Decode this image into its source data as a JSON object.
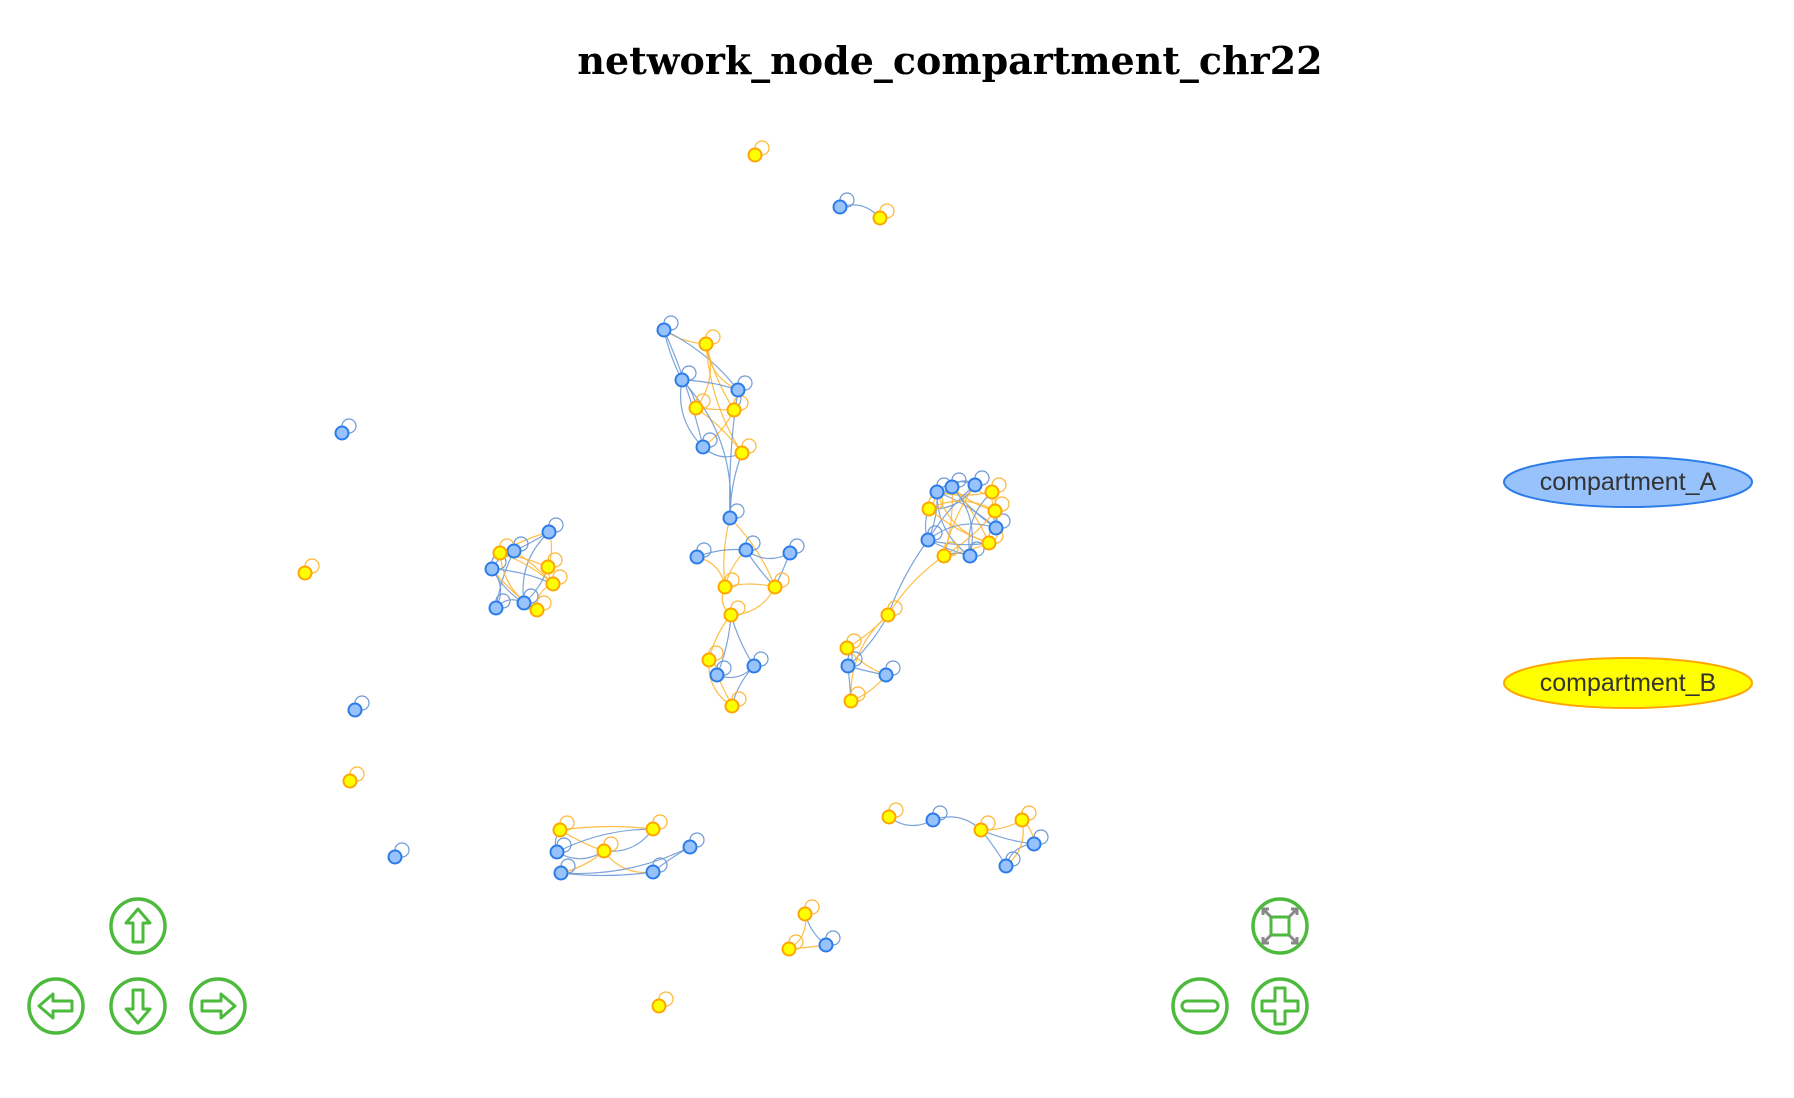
{
  "title": "network_node_compartment_chr22",
  "legend": {
    "items": [
      {
        "label": "compartment_A",
        "fill": "#97c2fc",
        "stroke": "#2b7ce9"
      },
      {
        "label": "compartment_B",
        "fill": "#ffff00",
        "stroke": "#ffa500"
      }
    ]
  },
  "colors": {
    "a_fill": "#97c2fc",
    "a_stroke": "#2b7ce9",
    "a_edge": "#6f9ad6",
    "b_fill": "#ffff00",
    "b_stroke": "#ffa500",
    "b_edge": "#ffb733",
    "nav": "#4cbb3c"
  },
  "navigation": {
    "up": "arrow-up-icon",
    "down": "arrow-down-icon",
    "left": "arrow-left-icon",
    "right": "arrow-right-icon",
    "fit": "fit-icon",
    "zoom_out": "minus-icon",
    "zoom_in": "plus-icon"
  }
}
